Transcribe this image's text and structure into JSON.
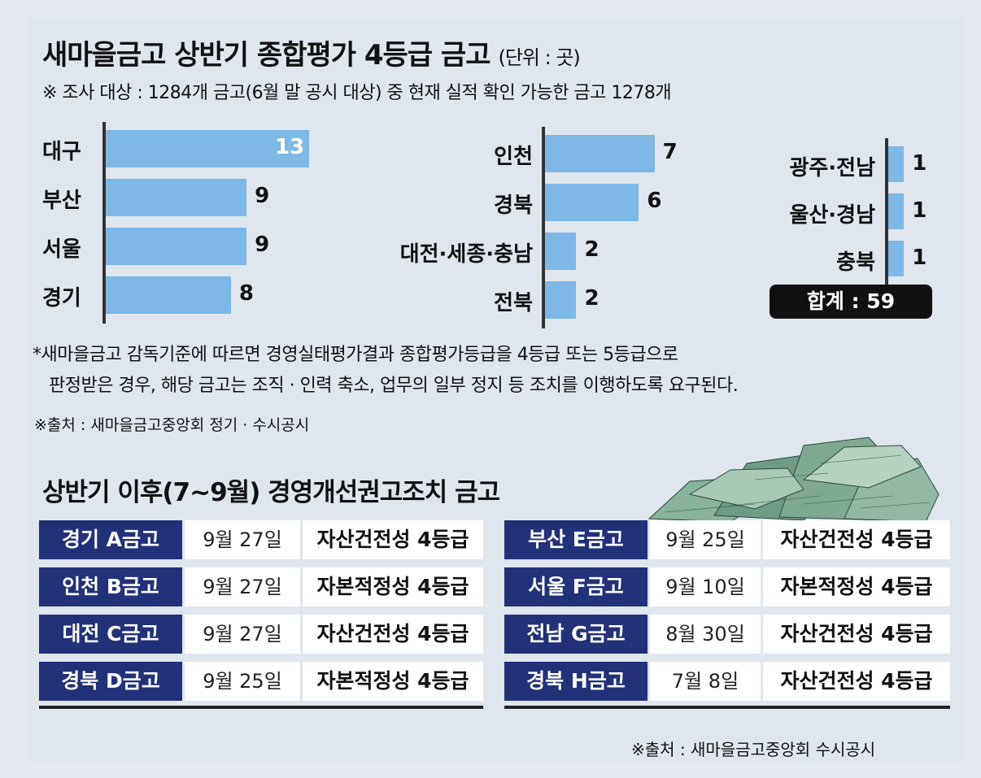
{
  "title": "새마을금고 상반기 종합평가 4등급 금고",
  "unit": "(단위 : 곳)",
  "note": "※ 조사 대상 : 1284개 금고(6월 말 공시 대상) 중 현재 실적 확인 가능한 금고 1278개",
  "chart_data": {
    "type": "bar",
    "orientation": "horizontal",
    "title": "새마을금고 상반기 종합평가 4등급 금고",
    "groups": [
      {
        "categories": [
          "대구",
          "부산",
          "서울",
          "경기"
        ],
        "values": [
          13,
          9,
          9,
          8
        ]
      },
      {
        "categories": [
          "인천",
          "경북",
          "대전·세종·충남",
          "전북"
        ],
        "values": [
          7,
          6,
          2,
          2
        ]
      },
      {
        "categories": [
          "광주·전남",
          "울산·경남",
          "충북"
        ],
        "values": [
          1,
          1,
          1
        ]
      }
    ],
    "xlim": [
      0,
      13
    ]
  },
  "total": "합계 : 59",
  "footnote_lines": [
    "*새마을금고 감독기준에 따르면 경영실태평가결과 종합평가등급을 4등급 또는 5등급으로",
    "판정받은 경우, 해당 금고는 조직 · 인력 축소, 업무의 일부 정지 등 조치를 이행하도록 요구된다."
  ],
  "source1": "※출처 : 새마을금고중앙회 정기 · 수시공시",
  "subtitle": "상반기 이후(7~9월) 경영개선권고조치 금고",
  "table_left": [
    [
      "경기 A금고",
      "9월 27일",
      "자산건전성 4등급"
    ],
    [
      "인천 B금고",
      "9월 27일",
      "자본적정성 4등급"
    ],
    [
      "대전 C금고",
      "9월 27일",
      "자산건전성 4등급"
    ],
    [
      "경북 D금고",
      "9월 25일",
      "자본적정성 4등급"
    ]
  ],
  "table_right": [
    [
      "부산 E금고",
      "9월 25일",
      "자산건전성 4등급"
    ],
    [
      "서울 F금고",
      "9월 10일",
      "자본적정성 4등급"
    ],
    [
      "전남 G금고",
      "8월 30일",
      "자산건전성 4등급"
    ],
    [
      "경북 H금고",
      "7월 8일",
      "자산건전성 4등급"
    ]
  ],
  "source2": "※출처 : 새마을금고중앙회 수시공시",
  "colors": {
    "bar": "#7db8e6",
    "header_cell": "#23307a",
    "total_bg": "#111111"
  }
}
